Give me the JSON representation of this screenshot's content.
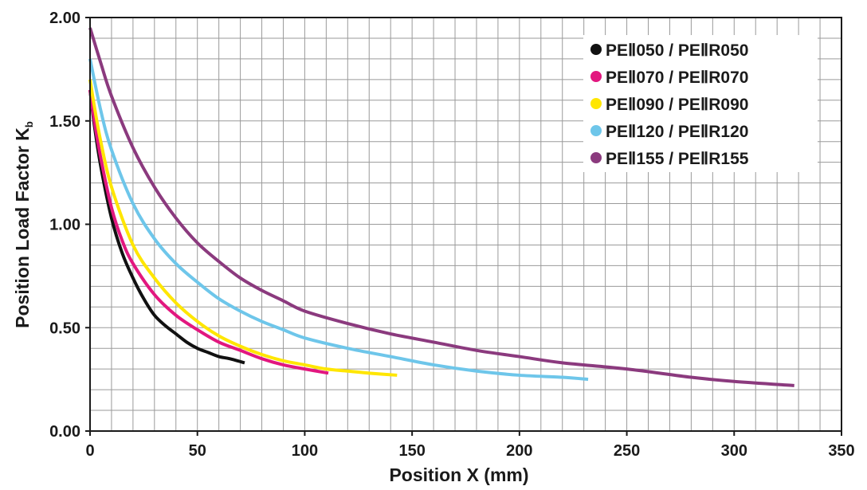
{
  "chart_data": {
    "type": "line",
    "xlabel": "Position X (mm)",
    "ylabel": "Position Load Factor K",
    "ylabel_subscript": "b",
    "xlim": [
      0,
      350
    ],
    "ylim": [
      0,
      2.0
    ],
    "x_ticks": [
      "0",
      "50",
      "100",
      "150",
      "200",
      "250",
      "300",
      "350"
    ],
    "y_ticks": [
      "0.00",
      "0.50",
      "1.00",
      "1.50",
      "2.00"
    ],
    "grid": true,
    "legend_position": "top-right",
    "series": [
      {
        "name": "PEⅡ050 / PEⅡR050",
        "color": "#111111",
        "x": [
          0,
          2,
          5,
          10,
          15,
          20,
          25,
          30,
          35,
          40,
          45,
          50,
          55,
          60,
          65,
          72
        ],
        "y": [
          1.65,
          1.48,
          1.28,
          1.03,
          0.86,
          0.74,
          0.64,
          0.56,
          0.51,
          0.47,
          0.43,
          0.4,
          0.38,
          0.36,
          0.35,
          0.33
        ]
      },
      {
        "name": "PEⅡ070 / PEⅡR070",
        "color": "#e2177f",
        "x": [
          0,
          2,
          5,
          10,
          15,
          20,
          30,
          40,
          50,
          60,
          70,
          80,
          90,
          100,
          111
        ],
        "y": [
          1.65,
          1.5,
          1.32,
          1.08,
          0.92,
          0.81,
          0.66,
          0.56,
          0.49,
          0.43,
          0.39,
          0.35,
          0.32,
          0.3,
          0.28
        ]
      },
      {
        "name": "PEⅡ090 / PEⅡR090",
        "color": "#ffe600",
        "x": [
          0,
          2,
          5,
          10,
          20,
          30,
          40,
          50,
          60,
          70,
          80,
          90,
          100,
          110,
          120,
          130,
          143
        ],
        "y": [
          1.7,
          1.57,
          1.4,
          1.18,
          0.9,
          0.74,
          0.62,
          0.53,
          0.46,
          0.41,
          0.37,
          0.34,
          0.32,
          0.3,
          0.29,
          0.28,
          0.27
        ]
      },
      {
        "name": "PEⅡ120 / PEⅡR120",
        "color": "#6ec6ea",
        "x": [
          0,
          5,
          10,
          20,
          30,
          40,
          50,
          60,
          70,
          80,
          90,
          100,
          120,
          140,
          160,
          180,
          200,
          220,
          232
        ],
        "y": [
          1.8,
          1.55,
          1.36,
          1.1,
          0.93,
          0.81,
          0.72,
          0.64,
          0.58,
          0.53,
          0.49,
          0.45,
          0.4,
          0.36,
          0.32,
          0.29,
          0.27,
          0.26,
          0.25
        ]
      },
      {
        "name": "PEⅡ155 / PEⅡR155",
        "color": "#8b3a7e",
        "x": [
          0,
          5,
          10,
          20,
          30,
          40,
          50,
          60,
          70,
          80,
          90,
          100,
          120,
          140,
          160,
          180,
          200,
          220,
          250,
          280,
          300,
          328
        ],
        "y": [
          1.95,
          1.78,
          1.62,
          1.37,
          1.18,
          1.03,
          0.91,
          0.82,
          0.74,
          0.68,
          0.63,
          0.58,
          0.52,
          0.47,
          0.43,
          0.39,
          0.36,
          0.33,
          0.3,
          0.26,
          0.24,
          0.22
        ]
      }
    ]
  }
}
